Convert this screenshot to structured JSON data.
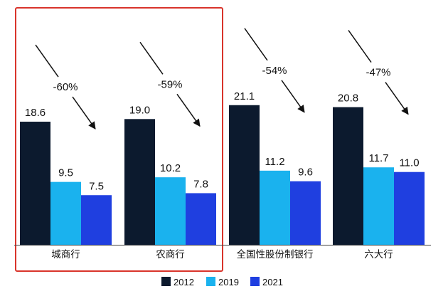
{
  "chart_data": {
    "type": "bar",
    "categories": [
      "城商行",
      "农商行",
      "全国性股份制银行",
      "六大行"
    ],
    "series": [
      {
        "name": "2012",
        "color": "#0c1a2e",
        "values": [
          18.6,
          19.0,
          21.1,
          20.8
        ]
      },
      {
        "name": "2019",
        "color": "#1ab2ee",
        "values": [
          9.5,
          10.2,
          11.2,
          11.7
        ]
      },
      {
        "name": "2021",
        "color": "#1f3fe0",
        "values": [
          7.5,
          7.8,
          9.6,
          11.0
        ]
      }
    ],
    "changes": [
      "-60%",
      "-59%",
      "-54%",
      "-47%"
    ],
    "ylim": [
      0,
      28
    ],
    "highlight_color": "#d9342b",
    "highlighted_categories": [
      "城商行",
      "农商行"
    ]
  }
}
